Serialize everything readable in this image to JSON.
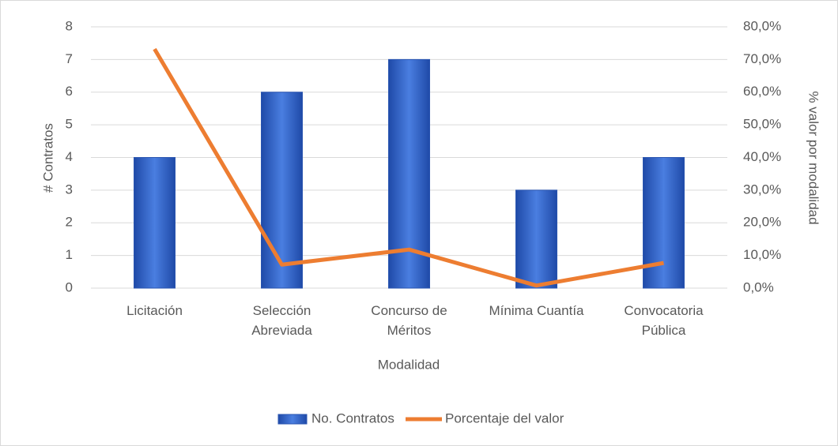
{
  "chart_data": {
    "type": "bar",
    "categories": [
      "Licitación",
      "Selección Abreviada",
      "Concurso de Méritos",
      "Mínima Cuantía",
      "Convocatoria Pública"
    ],
    "x_label": "Modalidad",
    "y_label": "# Contratos",
    "y2_label": "% valor por modalidad",
    "ylim": [
      0,
      8
    ],
    "yticks": [
      0,
      1,
      2,
      3,
      4,
      5,
      6,
      7,
      8
    ],
    "y2lim": [
      0,
      80
    ],
    "y2ticks": [
      {
        "value": 0,
        "label": "0,0%"
      },
      {
        "value": 10,
        "label": "10,0%"
      },
      {
        "value": 20,
        "label": "20,0%"
      },
      {
        "value": 30,
        "label": "30,0%"
      },
      {
        "value": 40,
        "label": "40,0%"
      },
      {
        "value": 50,
        "label": "50,0%"
      },
      {
        "value": 60,
        "label": "60,0%"
      },
      {
        "value": 70,
        "label": "70,0%"
      },
      {
        "value": 80,
        "label": "80,0%"
      }
    ],
    "grid": true,
    "legend": "bottom",
    "series": [
      {
        "name": "No. Contratos",
        "type": "bar",
        "color": "#3f6fd0",
        "values": [
          4,
          6,
          7,
          3,
          4
        ]
      },
      {
        "name": "Porcentaje del valor",
        "type": "line",
        "axis": "y2",
        "color": "#ed7d31",
        "values": [
          73.2,
          7.2,
          11.8,
          0.8,
          7.7
        ]
      }
    ]
  }
}
